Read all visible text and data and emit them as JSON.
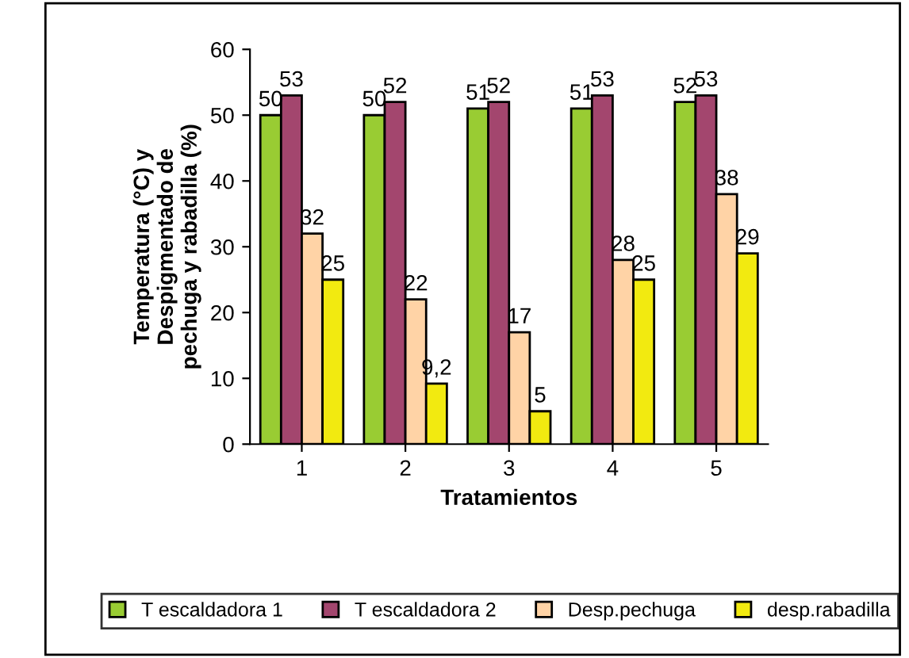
{
  "chart_data": {
    "type": "bar",
    "xlabel": "Tratamientos",
    "ylabel": "Temperatura (°C) y\nDespigmentado de\npechuga y rabadilla (%)",
    "categories": [
      "1",
      "2",
      "3",
      "4",
      "5"
    ],
    "series": [
      {
        "name": "T escaldadora 1",
        "color": "#99cc33",
        "values": [
          50,
          50,
          51,
          51,
          52
        ],
        "value_labels": [
          "50",
          "50",
          "51",
          "51",
          "52"
        ]
      },
      {
        "name": "T escaldadora 2",
        "color": "#a3466e",
        "values": [
          53,
          52,
          52,
          53,
          53
        ],
        "value_labels": [
          "53",
          "52",
          "52",
          "53",
          "53"
        ]
      },
      {
        "name": "Desp.pechuga",
        "color": "#ffd3a6",
        "values": [
          32,
          22,
          17,
          28,
          38
        ],
        "value_labels": [
          "32",
          "22",
          "17",
          "28",
          "38"
        ]
      },
      {
        "name": "desp.rabadilla",
        "color": "#f2ea10",
        "values": [
          25,
          9.2,
          5,
          25,
          29
        ],
        "value_labels": [
          "25",
          "9,2",
          "5",
          "25",
          "29"
        ]
      }
    ],
    "ylim": [
      0,
      60
    ],
    "yticks": [
      0,
      10,
      20,
      30,
      40,
      50,
      60
    ],
    "grid": false,
    "legend": "bottom"
  }
}
